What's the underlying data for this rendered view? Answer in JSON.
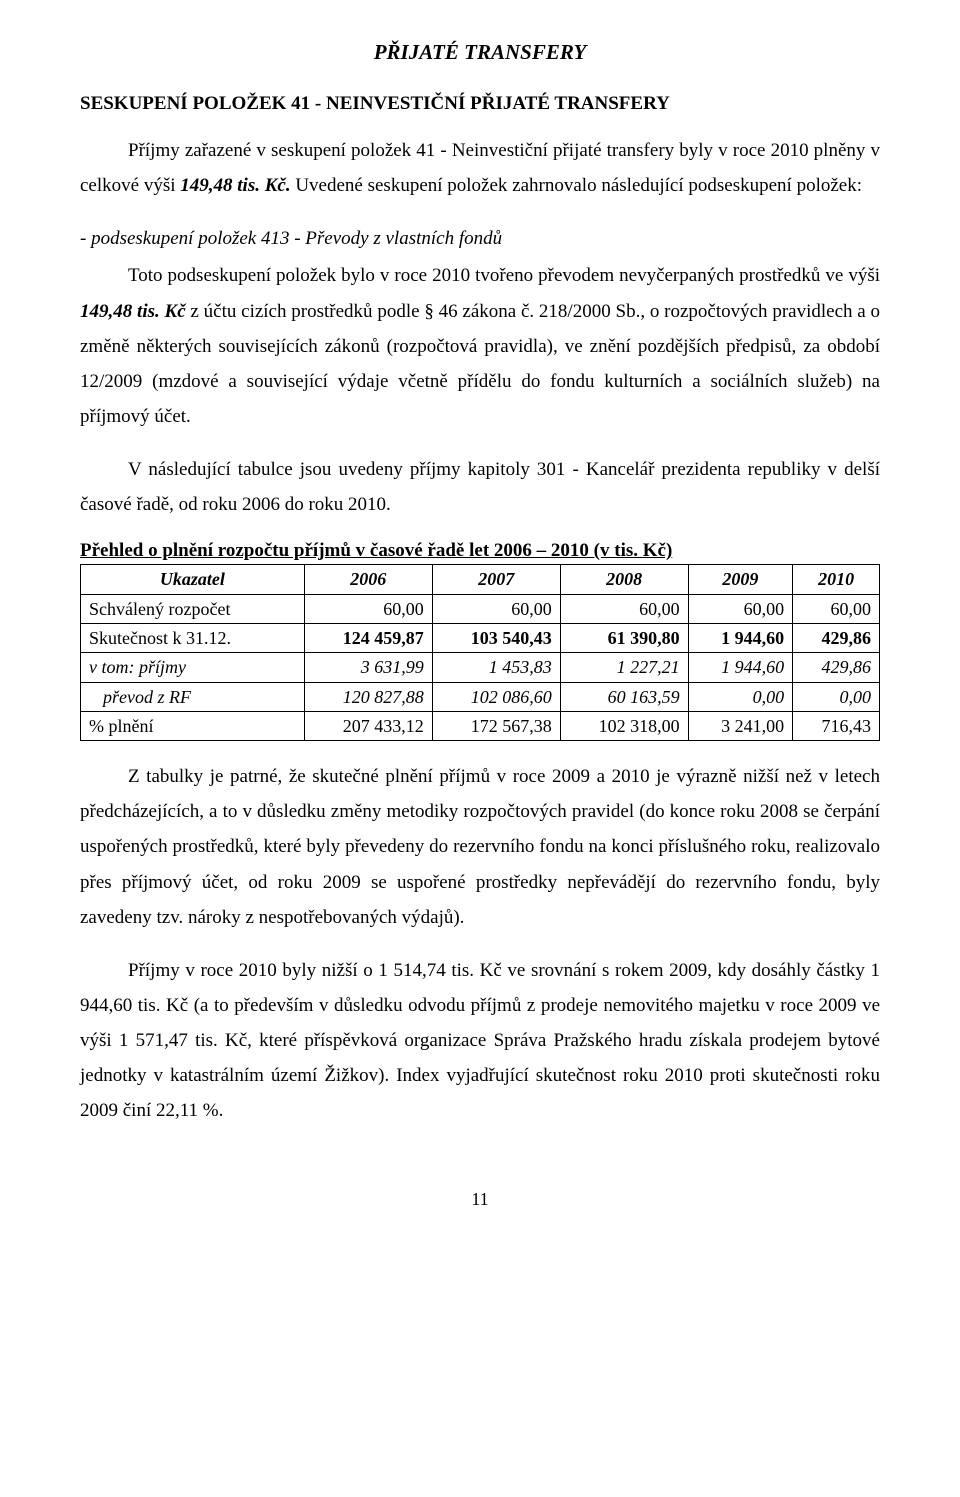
{
  "title": "PŘIJATÉ TRANSFERY",
  "subtitle": "SESKUPENÍ POLOŽEK 41 - NEINVESTIČNÍ PŘIJATÉ TRANSFERY",
  "para1_a": "Příjmy zařazené v seskupení položek 41 - Neinvestiční přijaté transfery byly v roce 2010 plněny v celkové výši ",
  "para1_b": "149,48 tis. Kč.",
  "para1_c": " Uvedené seskupení položek zahrnovalo následující podseskupení položek:",
  "bullet": "- podseskupení položek 413 - Převody z vlastních fondů",
  "para2_a": "Toto podseskupení položek bylo v roce 2010 tvořeno převodem nevyčerpaných prostředků ve výši ",
  "para2_b": "149,48 tis. Kč",
  "para2_c": " z účtu cizích prostředků podle § 46 zákona č. 218/2000 Sb., o rozpočtových pravidlech a o změně některých souvisejících zákonů (rozpočtová pravidla), ve znění pozdějších předpisů, za období 12/2009 (mzdové a související výdaje včetně přídělu do fondu kulturních a sociálních služeb) na příjmový účet.",
  "para3": "V následující tabulce jsou uvedeny příjmy kapitoly 301 - Kancelář prezidenta republiky v delší časové řadě, od roku 2006 do roku 2010.",
  "table_title": "Přehled o plnění rozpočtu příjmů v časové řadě let 2006 – 2010 (v tis. Kč)",
  "table": {
    "header_label": "Ukazatel",
    "years": [
      "2006",
      "2007",
      "2008",
      "2009",
      "2010"
    ],
    "rows": [
      {
        "label": "Schválený rozpočet",
        "vals": [
          "60,00",
          "60,00",
          "60,00",
          "60,00",
          "60,00"
        ],
        "label_style": "plain",
        "val_style": "plain"
      },
      {
        "label": "Skutečnost k 31.12.",
        "vals": [
          "124 459,87",
          "103 540,43",
          "61 390,80",
          "1 944,60",
          "429,86"
        ],
        "label_style": "plain",
        "val_style": "bold"
      },
      {
        "label": "v tom: příjmy",
        "vals": [
          "3 631,99",
          "1 453,83",
          "1 227,21",
          "1 944,60",
          "429,86"
        ],
        "label_style": "ital",
        "val_style": "ital"
      },
      {
        "label": "převod z RF",
        "vals": [
          "120 827,88",
          "102 086,60",
          "60 163,59",
          "0,00",
          "0,00"
        ],
        "label_style": "ital indent",
        "val_style": "ital"
      },
      {
        "label": "% plnění",
        "vals": [
          "207 433,12",
          "172 567,38",
          "102 318,00",
          "3 241,00",
          "716,43"
        ],
        "label_style": "plain",
        "val_style": "plain"
      }
    ]
  },
  "para4": "Z tabulky je patrné, že skutečné plnění příjmů v roce 2009 a 2010 je výrazně nižší než v letech předcházejících, a to v důsledku změny metodiky rozpočtových pravidel (do konce roku 2008 se čerpání uspořených prostředků, které byly převedeny do rezervního fondu na konci příslušného roku, realizovalo přes příjmový účet, od roku 2009 se uspořené prostředky nepřevádějí do rezervního fondu, byly zavedeny tzv. nároky z nespotřebovaných výdajů).",
  "para5": "Příjmy v roce 2010 byly nižší o 1 514,74 tis. Kč ve srovnání s rokem 2009, kdy dosáhly částky 1 944,60 tis. Kč (a to především v důsledku odvodu příjmů z prodeje nemovitého majetku v roce 2009 ve výši 1 571,47 tis. Kč, které příspěvková organizace Správa Pražského hradu získala prodejem bytové jednotky v katastrálním území Žižkov). Index vyjadřující skutečnost roku 2010 proti skutečnosti roku 2009 činí 22,11 %.",
  "page_number": "11"
}
